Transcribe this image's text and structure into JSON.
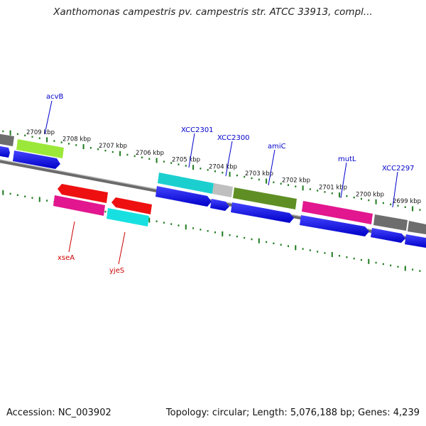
{
  "header": {
    "title": "Xanthomonas campestris pv. campestris str. ATCC 33913, compl..."
  },
  "footer": {
    "accession_text": "Accession: NC_003902",
    "summary_text": "Topology: circular; Length: 5,076,188 bp; Genes: 4,239"
  },
  "ruler": {
    "labels": [
      "2709 kbp",
      "2708 kbp",
      "2707 kbp",
      "2706 kbp",
      "2705 kbp",
      "2704 kbp",
      "2703 kbp",
      "2702 kbp",
      "2701 kbp",
      "2700 kbp",
      "2699 kbp"
    ]
  },
  "colors": {
    "forward_label": "#0000cc",
    "reverse_label": "#cc0000",
    "tick_green": "#1e7a1e",
    "backbone": "#777777",
    "cds_blue": "#0000ee",
    "gene_red": "#ee0000",
    "gene_pink": "#e0148c",
    "gene_cyan": "#19d6d6",
    "gene_lime": "#99ee33",
    "gene_olive": "#5a8a1e",
    "gene_gray": "#666666",
    "gene_lightgray": "#bbbbbb"
  },
  "genes": {
    "forward": [
      "acvB",
      "XCC2301",
      "XCC2300",
      "amiC",
      "mutL",
      "XCC2297"
    ],
    "reverse": [
      "xseA",
      "yjeS"
    ]
  }
}
